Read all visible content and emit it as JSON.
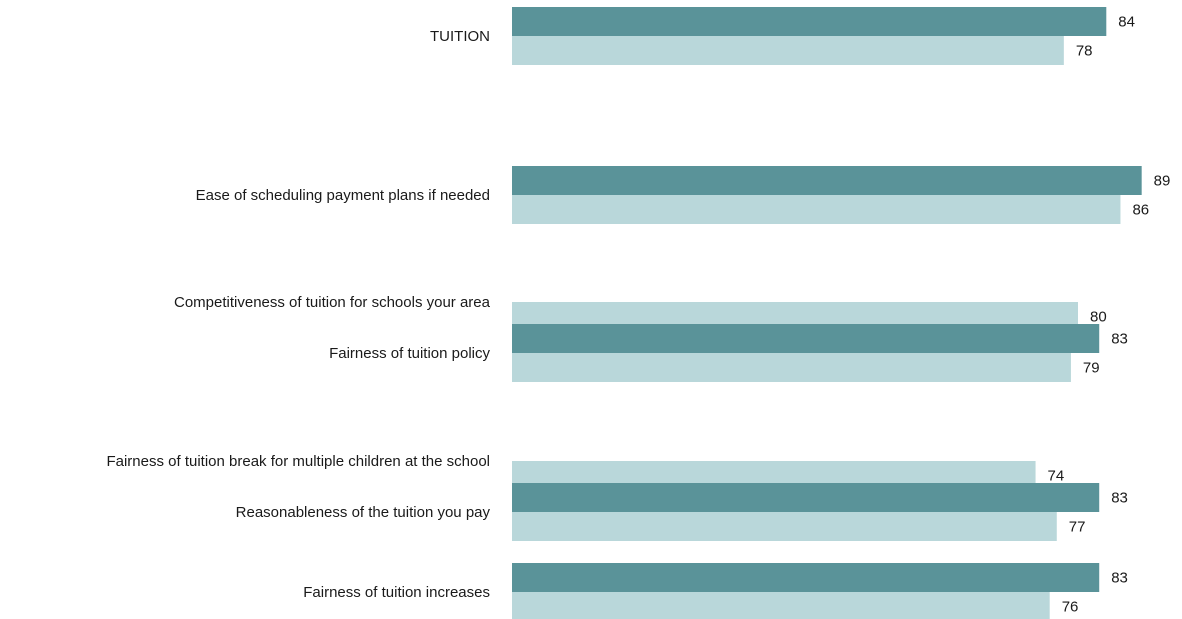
{
  "chart_data": {
    "type": "bar",
    "orientation": "horizontal",
    "categories": [
      "TUITION",
      "Ease of scheduling payment plans if needed",
      "Competitiveness of tuition for schools your area",
      "Fairness of tuition policy",
      "Fairness of tuition break for multiple children at the school",
      "Reasonableness of the tuition you pay",
      "Fairness of tuition increases"
    ],
    "series": [
      {
        "color": "#5a9399",
        "values": [
          84,
          89,
          null,
          83,
          null,
          83,
          83
        ]
      },
      {
        "color": "#b9d7da",
        "values": [
          78,
          86,
          80,
          79,
          74,
          77,
          76
        ]
      }
    ],
    "grid": false,
    "legend": "none"
  }
}
